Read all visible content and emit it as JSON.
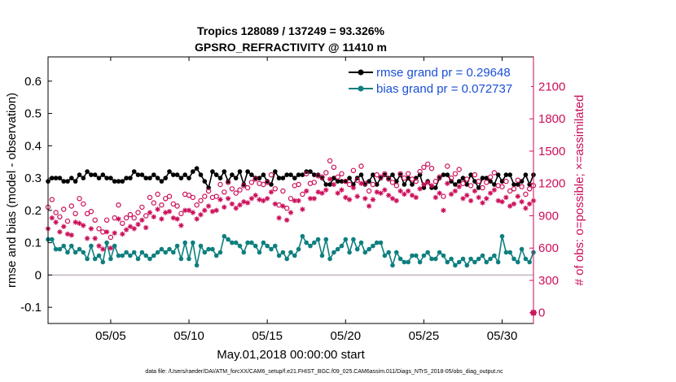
{
  "chart_data": {
    "type": "line",
    "title_line1": "Tropics 128089 / 137249 = 93.326%",
    "title_line2": "GPSRO_REFRACTIVITY @ 11410 m",
    "xlabel": "May.01,2018 00:00:00 start",
    "ylabel_left": "rmse and bias (model - observation)",
    "ylabel_right": "# of obs: o=possible; ×=assimilated",
    "footnote": "data file: /Users/raeder/DAI/ATM_forcXX/CAM6_setup/f.e21.FHIST_BGC.f09_025.CAM6assim.011/Diags_NTrS_2018-05/obs_diag_output.nc",
    "xlim": [
      1,
      32
    ],
    "ylim_left": [
      -0.15,
      0.675
    ],
    "ylim_right": [
      -100,
      2375
    ],
    "x_ticks": [
      5,
      10,
      15,
      20,
      25,
      30
    ],
    "x_tick_labels": [
      "05/05",
      "05/10",
      "05/15",
      "05/20",
      "05/25",
      "05/30"
    ],
    "y_left_ticks": [
      -0.1,
      0,
      0.1,
      0.2,
      0.3,
      0.4,
      0.5,
      0.6
    ],
    "y_left_tick_labels": [
      "-0.1",
      "0",
      "0.1",
      "0.2",
      "0.3",
      "0.4",
      "0.5",
      "0.6"
    ],
    "y_right_ticks": [
      0,
      300,
      600,
      900,
      1200,
      1500,
      1800,
      2100
    ],
    "y_right_tick_labels": [
      "0",
      "300",
      "600",
      "900",
      "1200",
      "1500",
      "1800",
      "2100"
    ],
    "legend": [
      {
        "name": "rmse grand pr = 0.29648",
        "color": "#000000"
      },
      {
        "name": "bias grand pr = 0.072737",
        "color": "#0f7f7f"
      }
    ],
    "colors": {
      "rmse": "#000000",
      "bias": "#0f7f7f",
      "obs": "#cc0e5a",
      "zero_line": "#b8a8b8"
    },
    "series": [
      {
        "name": "rmse",
        "axis": "left",
        "x_start": 1.0,
        "x_step": 0.25,
        "values": [
          0.29,
          0.3,
          0.3,
          0.3,
          0.29,
          0.29,
          0.3,
          0.29,
          0.31,
          0.3,
          0.32,
          0.31,
          0.31,
          0.3,
          0.31,
          0.3,
          0.3,
          0.29,
          0.29,
          0.29,
          0.3,
          0.3,
          0.32,
          0.31,
          0.31,
          0.3,
          0.3,
          0.31,
          0.3,
          0.29,
          0.3,
          0.32,
          0.31,
          0.31,
          0.3,
          0.31,
          0.3,
          0.32,
          0.33,
          0.31,
          0.29,
          0.27,
          0.32,
          0.31,
          0.3,
          0.32,
          0.29,
          0.31,
          0.3,
          0.32,
          0.28,
          0.32,
          0.31,
          0.3,
          0.3,
          0.31,
          0.29,
          0.28,
          0.32,
          0.3,
          0.3,
          0.31,
          0.31,
          0.3,
          0.31,
          0.31,
          0.32,
          0.32,
          0.31,
          0.31,
          0.3,
          0.28,
          0.28,
          0.3,
          0.29,
          0.29,
          0.29,
          0.3,
          0.28,
          0.3,
          0.31,
          0.28,
          0.29,
          0.31,
          0.28,
          0.3,
          0.31,
          0.3,
          0.31,
          0.29,
          0.31,
          0.28,
          0.3,
          0.28,
          0.3,
          0.31,
          0.27,
          0.29,
          0.27,
          0.27,
          0.3,
          0.31,
          0.31,
          0.29,
          0.28,
          0.29,
          0.3,
          0.28,
          0.31,
          0.29,
          0.27,
          0.3,
          0.3,
          0.29,
          0.28,
          0.31,
          0.29,
          0.31,
          0.31,
          0.28,
          0.28,
          0.29,
          0.31,
          0.28,
          0.31
        ]
      },
      {
        "name": "bias",
        "axis": "left",
        "x_start": 1.0,
        "x_step": 0.25,
        "values": [
          0.11,
          0.11,
          0.08,
          0.08,
          0.09,
          0.07,
          0.09,
          0.07,
          0.08,
          0.07,
          0.05,
          0.09,
          0.05,
          0.06,
          0.04,
          0.1,
          0.05,
          0.09,
          0.06,
          0.06,
          0.07,
          0.06,
          0.07,
          0.05,
          0.07,
          0.06,
          0.05,
          0.06,
          0.07,
          0.08,
          0.07,
          0.08,
          0.07,
          0.09,
          0.05,
          0.1,
          0.05,
          0.1,
          0.03,
          0.09,
          0.07,
          0.08,
          0.08,
          0.06,
          0.07,
          0.12,
          0.11,
          0.1,
          0.1,
          0.09,
          0.07,
          0.1,
          0.1,
          0.09,
          0.07,
          0.1,
          0.09,
          0.08,
          0.09,
          0.06,
          0.07,
          0.05,
          0.07,
          0.06,
          0.08,
          0.12,
          0.1,
          0.09,
          0.1,
          0.11,
          0.06,
          0.11,
          0.05,
          0.07,
          0.08,
          0.09,
          0.11,
          0.07,
          0.11,
          0.08,
          0.1,
          0.07,
          0.08,
          0.09,
          0.1,
          0.1,
          0.06,
          0.07,
          0.03,
          0.07,
          0.05,
          0.04,
          0.04,
          0.06,
          0.06,
          0.04,
          0.06,
          0.07,
          0.05,
          0.05,
          0.07,
          0.06,
          0.04,
          0.05,
          0.03,
          0.04,
          0.05,
          0.03,
          0.05,
          0.04,
          0.05,
          0.06,
          0.04,
          0.05,
          0.06,
          0.04,
          0.12,
          0.07,
          0.07,
          0.05,
          0.04,
          0.08,
          0.05,
          0.04,
          0.07
        ]
      },
      {
        "name": "possible",
        "axis": "right",
        "marker": "circle",
        "x_start": 1.0,
        "x_step": 0.25,
        "values": [
          980,
          1050,
          930,
          890,
          960,
          850,
          990,
          920,
          1060,
          1010,
          920,
          940,
          860,
          780,
          750,
          860,
          700,
          880,
          1000,
          830,
          880,
          910,
          880,
          930,
          980,
          900,
          1070,
          1020,
          1100,
          1000,
          1060,
          1080,
          1010,
          990,
          920,
          1100,
          1090,
          1070,
          1000,
          1040,
          1080,
          1130,
          1070,
          1080,
          1190,
          1120,
          1210,
          1150,
          1110,
          1140,
          1180,
          1160,
          1210,
          1240,
          1200,
          1190,
          1210,
          1280,
          1150,
          1000,
          1130,
          970,
          1060,
          1180,
          1190,
          1100,
          1290,
          1200,
          1210,
          1270,
          1260,
          1300,
          1410,
          1350,
          1260,
          1290,
          1220,
          1190,
          1320,
          1230,
          1360,
          1200,
          1130,
          1190,
          1280,
          1260,
          1290,
          1240,
          1210,
          1180,
          1290,
          1250,
          1290,
          1240,
          1220,
          1310,
          1350,
          1380,
          1340,
          1220,
          1260,
          1080,
          1360,
          1250,
          1290,
          1330,
          1200,
          1240,
          1180,
          1280,
          1220,
          1160,
          1210,
          1260,
          1300,
          1180,
          1170,
          1220,
          1130,
          1150,
          1230,
          1170,
          1100,
          1150,
          1180
        ]
      },
      {
        "name": "assimilated",
        "axis": "right",
        "marker": "asterisk",
        "x_start": 1.0,
        "x_step": 0.25,
        "values": [
          780,
          880,
          840,
          750,
          800,
          730,
          720,
          840,
          830,
          810,
          690,
          780,
          690,
          620,
          590,
          750,
          600,
          740,
          870,
          730,
          770,
          800,
          780,
          820,
          860,
          790,
          930,
          890,
          960,
          870,
          930,
          940,
          880,
          870,
          810,
          950,
          950,
          930,
          870,
          910,
          950,
          990,
          940,
          950,
          1050,
          980,
          1060,
          1010,
          970,
          1000,
          1030,
          1020,
          1060,
          1090,
          1050,
          1040,
          1060,
          1120,
          1010,
          880,
          990,
          860,
          930,
          1040,
          1040,
          960,
          1130,
          1060,
          1060,
          1120,
          1110,
          1140,
          1240,
          1190,
          1110,
          1140,
          1070,
          1050,
          1160,
          1080,
          1200,
          1060,
          990,
          1050,
          1120,
          1110,
          1140,
          1090,
          1060,
          1040,
          1130,
          1100,
          1130,
          1090,
          1070,
          1150,
          1190,
          1210,
          1180,
          1070,
          1110,
          950,
          1200,
          1100,
          1130,
          1170,
          1060,
          1090,
          1040,
          1130,
          1070,
          1020,
          1060,
          1110,
          1140,
          1040,
          1030,
          1070,
          990,
          1010,
          1080,
          1030,
          970,
          1010,
          1040
        ]
      }
    ]
  }
}
